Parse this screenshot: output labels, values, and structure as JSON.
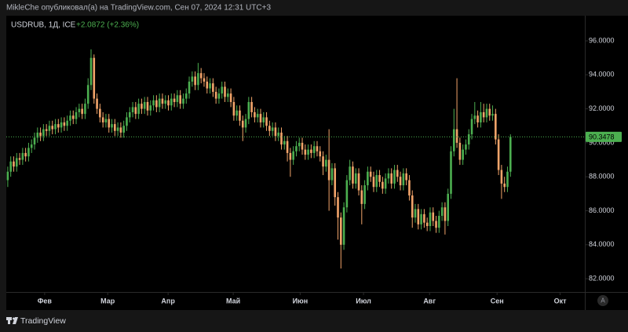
{
  "header": {
    "text": "MikleChe опубликовал(а) на TradingView.com, Сен 07, 2024 12:31 UTC+3"
  },
  "footer": {
    "brand": "TradingView",
    "auto_button": "A"
  },
  "chart_data": {
    "type": "candlestick",
    "title": "USDRUB, 1Д, ICE",
    "subtitle": "+2.0872 (+2.36%)",
    "up_color": "#4caf50",
    "down_color": "#f2a46a",
    "last_price": 90.3478,
    "xlim": [
      -0.5,
      194
    ],
    "xticks": [
      {
        "value": 12.4,
        "label": "Фев"
      },
      {
        "value": 33.6,
        "label": "Мар"
      },
      {
        "value": 53.9,
        "label": "Апр"
      },
      {
        "value": 75.8,
        "label": "Май"
      },
      {
        "value": 98.3,
        "label": "Июн"
      },
      {
        "value": 119.6,
        "label": "Июл"
      },
      {
        "value": 141.8,
        "label": "Авг"
      },
      {
        "value": 164.5,
        "label": "Сен"
      },
      {
        "value": 185.7,
        "label": "Окт"
      }
    ],
    "ylim": [
      81.22,
      97.48
    ],
    "yticks": [
      {
        "value": 82,
        "label": "82.0000"
      },
      {
        "value": 84,
        "label": "84.0000"
      },
      {
        "value": 86,
        "label": "86.0000"
      },
      {
        "value": 88,
        "label": "88.0000"
      },
      {
        "value": 90,
        "label": "90.0000"
      },
      {
        "value": 92,
        "label": "92.0000"
      },
      {
        "value": 94,
        "label": "94.0000"
      },
      {
        "value": 96,
        "label": "96.0000"
      }
    ],
    "open": [
      87.8,
      88.3,
      88.9,
      88.6,
      89.1,
      89.0,
      89.4,
      89.2,
      89.7,
      89.9,
      90.3,
      90.6,
      90.4,
      90.8,
      90.7,
      91.0,
      90.8,
      91.1,
      90.9,
      91.2,
      91.0,
      91.3,
      91.6,
      91.4,
      91.8,
      92.0,
      91.7,
      92.3,
      93.4,
      95.0,
      92.6,
      92.0,
      91.5,
      91.2,
      91.4,
      90.9,
      91.1,
      90.7,
      90.9,
      90.6,
      91.0,
      91.5,
      91.8,
      92.1,
      91.7,
      92.3,
      92.0,
      92.4,
      91.9,
      92.2,
      92.5,
      92.1,
      92.6,
      92.3,
      92.5,
      92.2,
      92.6,
      92.4,
      92.8,
      92.3,
      92.6,
      92.9,
      93.6,
      93.9,
      93.4,
      94.1,
      93.8,
      93.6,
      93.2,
      93.5,
      93.0,
      92.6,
      92.9,
      93.3,
      92.7,
      92.9,
      92.4,
      91.6,
      91.9,
      91.3,
      90.9,
      91.4,
      92.4,
      91.8,
      91.5,
      91.7,
      91.2,
      91.5,
      91.0,
      90.7,
      90.9,
      90.4,
      90.6,
      89.9,
      90.1,
      89.4,
      89.0,
      89.5,
      89.8,
      90.0,
      89.6,
      89.3,
      89.6,
      89.4,
      89.8,
      89.5,
      89.2,
      88.6,
      89.0,
      87.8,
      88.5,
      86.8,
      85.6,
      84.0,
      86.2,
      87.8,
      88.6,
      87.6,
      88.2,
      87.2,
      86.4,
      87.5,
      88.3,
      88.0,
      87.4,
      88.1,
      87.7,
      87.3,
      87.9,
      88.2,
      87.6,
      88.4,
      88.0,
      87.5,
      88.2,
      87.8,
      86.9,
      85.6,
      86.1,
      85.2,
      85.8,
      85.3,
      85.1,
      85.9,
      85.4,
      85.0,
      85.7,
      86.2,
      85.4,
      87.0,
      89.5,
      90.8,
      90.0,
      89.0,
      89.6,
      89.9,
      90.5,
      91.4,
      91.6,
      91.2,
      91.8,
      91.5,
      92.0,
      91.6,
      91.7,
      90.2,
      88.4,
      87.6,
      87.4,
      88.3
    ],
    "high": [
      88.6,
      89.2,
      89.2,
      89.4,
      89.4,
      89.7,
      89.7,
      90.0,
      90.2,
      90.6,
      90.9,
      90.9,
      91.1,
      91.1,
      91.3,
      91.3,
      91.4,
      91.4,
      91.5,
      91.5,
      91.6,
      91.9,
      91.9,
      92.1,
      92.3,
      92.3,
      92.6,
      93.8,
      95.5,
      95.2,
      92.9,
      92.3,
      91.8,
      91.7,
      91.7,
      91.4,
      91.4,
      91.2,
      91.2,
      91.3,
      91.8,
      92.1,
      92.4,
      92.4,
      92.6,
      92.6,
      92.7,
      92.7,
      92.5,
      92.8,
      92.8,
      92.9,
      92.9,
      92.8,
      92.8,
      92.9,
      92.9,
      93.1,
      93.1,
      92.9,
      93.2,
      93.9,
      94.2,
      94.2,
      94.7,
      94.4,
      94.1,
      93.9,
      93.8,
      93.8,
      93.3,
      93.2,
      93.6,
      93.6,
      93.2,
      93.2,
      92.7,
      92.2,
      92.2,
      91.6,
      91.7,
      92.7,
      92.7,
      92.1,
      92.0,
      92.0,
      91.8,
      91.8,
      91.3,
      91.2,
      91.2,
      90.9,
      90.9,
      90.4,
      90.4,
      89.7,
      89.8,
      90.1,
      90.3,
      90.3,
      89.9,
      89.9,
      89.9,
      90.1,
      90.1,
      89.8,
      89.5,
      89.3,
      90.8,
      88.8,
      88.8,
      87.1,
      85.9,
      86.5,
      88.1,
      89.0,
      88.9,
      88.5,
      88.5,
      87.5,
      87.8,
      88.6,
      88.6,
      88.3,
      88.4,
      88.4,
      88.0,
      88.2,
      88.5,
      88.5,
      88.7,
      88.7,
      88.3,
      88.5,
      88.5,
      88.1,
      87.2,
      86.4,
      86.4,
      86.1,
      86.1,
      85.6,
      86.2,
      86.2,
      85.7,
      86.0,
      86.5,
      86.5,
      87.3,
      89.8,
      92.0,
      93.8,
      90.3,
      89.9,
      90.2,
      90.8,
      91.7,
      92.4,
      91.9,
      92.4,
      92.3,
      92.3,
      92.3,
      92.2,
      92.0,
      90.5,
      88.7,
      88.0,
      88.6,
      90.5
    ],
    "low": [
      87.4,
      88.0,
      88.3,
      88.3,
      88.7,
      88.7,
      88.9,
      88.9,
      89.4,
      89.6,
      90.0,
      90.1,
      90.1,
      90.4,
      90.4,
      90.5,
      90.5,
      90.6,
      90.6,
      90.7,
      90.7,
      91.0,
      91.1,
      91.1,
      91.5,
      91.4,
      91.4,
      92.0,
      93.1,
      92.3,
      91.7,
      91.2,
      90.9,
      90.9,
      90.6,
      90.6,
      90.4,
      90.4,
      90.3,
      90.3,
      90.7,
      91.2,
      91.5,
      91.4,
      91.4,
      91.7,
      91.7,
      91.6,
      91.6,
      91.9,
      91.8,
      91.8,
      92.0,
      92.0,
      91.9,
      91.9,
      92.1,
      92.1,
      92.0,
      92.0,
      92.3,
      92.6,
      93.3,
      93.1,
      93.1,
      93.5,
      93.3,
      92.9,
      92.9,
      92.7,
      92.3,
      92.3,
      92.6,
      92.4,
      92.4,
      92.1,
      91.3,
      91.3,
      91.0,
      90.1,
      90.6,
      91.1,
      91.5,
      91.2,
      91.2,
      90.9,
      90.9,
      90.7,
      90.4,
      90.4,
      90.1,
      90.1,
      89.6,
      89.6,
      88.9,
      88.0,
      88.7,
      89.2,
      89.5,
      89.3,
      89.0,
      89.0,
      89.1,
      89.1,
      89.2,
      88.9,
      88.1,
      88.3,
      86.0,
      87.5,
      86.3,
      84.3,
      82.6,
      83.7,
      85.9,
      87.5,
      87.3,
      87.3,
      86.9,
      85.2,
      86.1,
      87.2,
      87.7,
      87.1,
      87.1,
      87.4,
      87.0,
      87.0,
      87.6,
      87.3,
      87.3,
      87.7,
      87.2,
      87.2,
      87.5,
      86.6,
      85.0,
      85.3,
      84.9,
      84.9,
      85.0,
      84.8,
      84.8,
      85.1,
      84.7,
      84.7,
      85.4,
      84.6,
      85.1,
      86.7,
      89.2,
      89.7,
      88.7,
      88.7,
      89.3,
      89.6,
      90.2,
      91.1,
      90.9,
      90.9,
      91.2,
      91.2,
      91.3,
      91.3,
      89.9,
      88.1,
      86.7,
      87.1,
      87.1,
      88.0
    ],
    "close": [
      88.3,
      88.9,
      88.6,
      89.1,
      89.0,
      89.4,
      89.2,
      89.7,
      89.9,
      90.3,
      90.6,
      90.4,
      90.8,
      90.7,
      91.0,
      90.8,
      91.1,
      90.9,
      91.2,
      91.0,
      91.3,
      91.6,
      91.4,
      91.8,
      92.0,
      91.7,
      92.3,
      93.4,
      95.0,
      92.6,
      92.0,
      91.5,
      91.2,
      91.4,
      90.9,
      91.1,
      90.7,
      90.9,
      90.6,
      91.0,
      91.5,
      91.8,
      92.1,
      91.7,
      92.3,
      92.0,
      92.4,
      91.9,
      92.2,
      92.5,
      92.1,
      92.6,
      92.3,
      92.5,
      92.2,
      92.6,
      92.4,
      92.8,
      92.3,
      92.6,
      92.9,
      93.6,
      93.9,
      93.4,
      94.1,
      93.8,
      93.6,
      93.2,
      93.5,
      93.0,
      92.6,
      92.9,
      93.3,
      92.7,
      92.9,
      92.4,
      91.6,
      91.9,
      91.3,
      90.9,
      91.4,
      92.4,
      91.8,
      91.5,
      91.7,
      91.2,
      91.5,
      91.0,
      90.7,
      90.9,
      90.4,
      90.6,
      89.9,
      90.1,
      89.4,
      89.0,
      89.5,
      89.8,
      90.0,
      89.6,
      89.3,
      89.6,
      89.4,
      89.8,
      89.5,
      89.2,
      88.6,
      89.0,
      87.8,
      88.5,
      86.8,
      85.6,
      84.0,
      86.2,
      87.8,
      88.6,
      87.6,
      88.2,
      87.2,
      86.4,
      87.5,
      88.3,
      88.0,
      87.4,
      88.1,
      87.7,
      87.3,
      87.9,
      88.2,
      87.6,
      88.4,
      88.0,
      87.5,
      88.2,
      87.8,
      86.9,
      85.6,
      86.1,
      85.2,
      85.8,
      85.3,
      85.1,
      85.9,
      85.4,
      85.0,
      85.7,
      86.2,
      85.4,
      87.0,
      89.5,
      90.8,
      90.0,
      89.0,
      89.6,
      89.9,
      90.5,
      91.4,
      91.6,
      91.2,
      91.8,
      91.5,
      92.0,
      91.6,
      91.7,
      90.2,
      88.4,
      87.6,
      87.4,
      88.3,
      90.3478
    ]
  }
}
